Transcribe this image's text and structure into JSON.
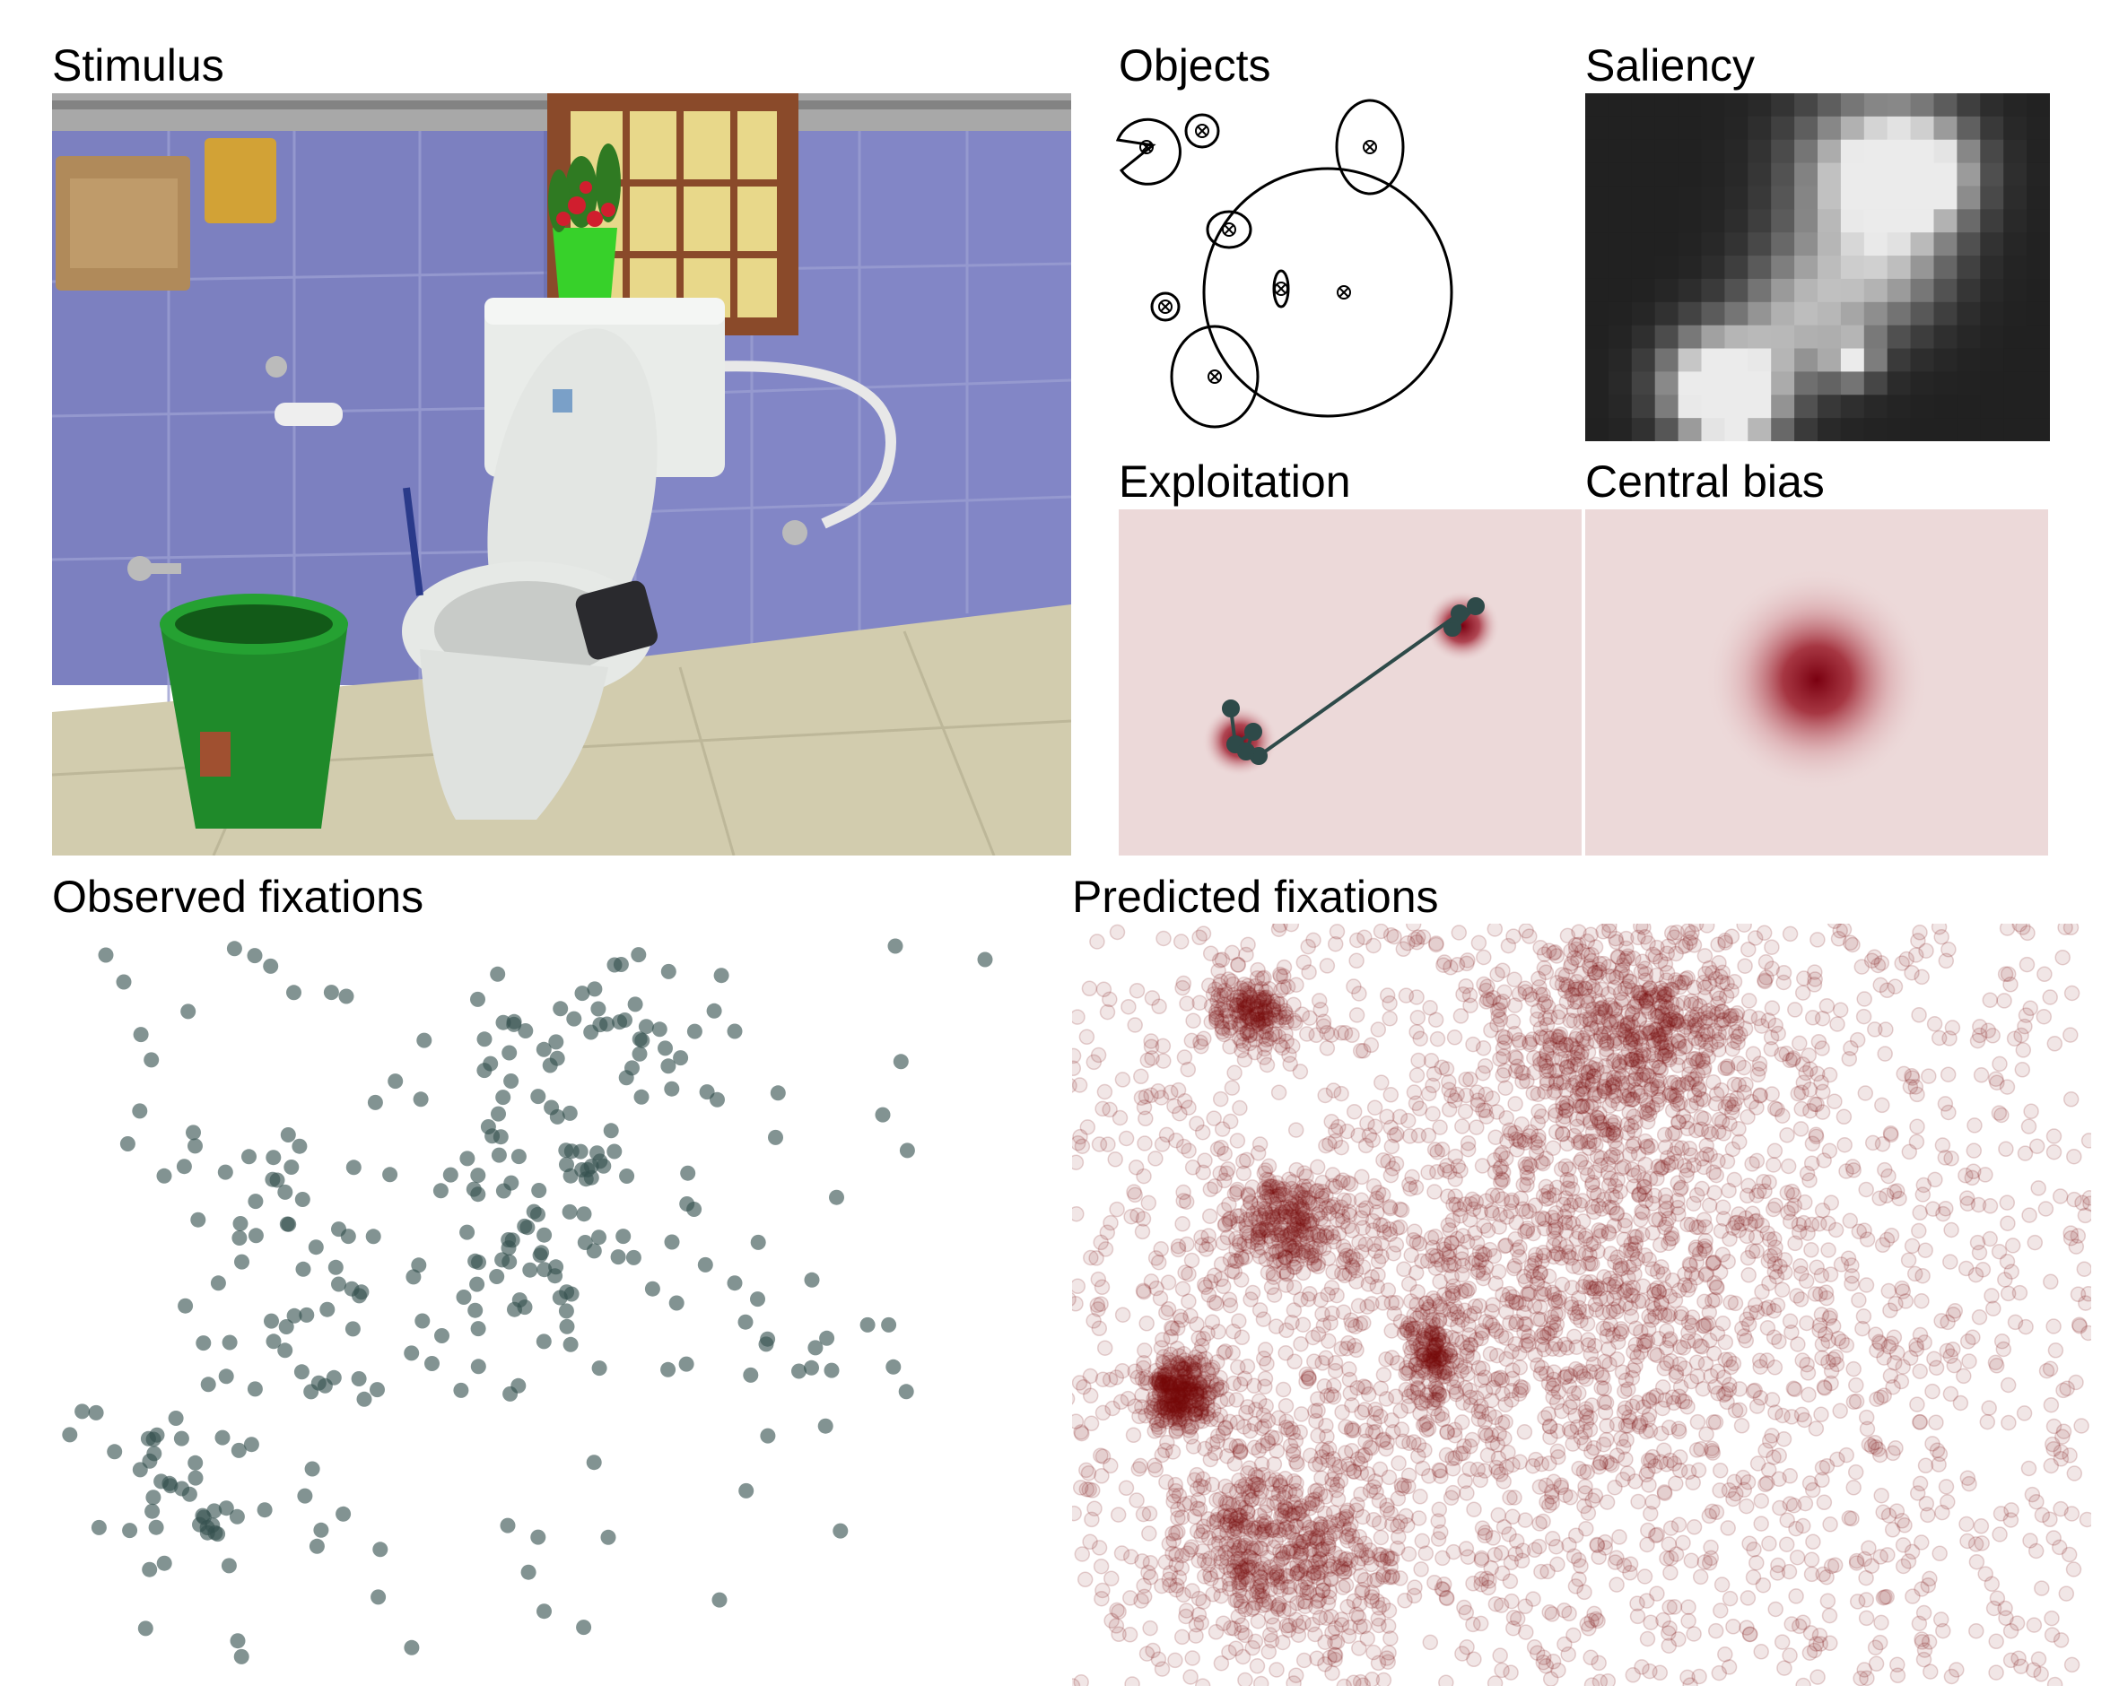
{
  "panels": {
    "stimulus": {
      "title": "Stimulus"
    },
    "objects": {
      "title": "Objects"
    },
    "saliency": {
      "title": "Saliency"
    },
    "exploitation": {
      "title": "Exploitation"
    },
    "central_bias": {
      "title": "Central bias"
    },
    "observed": {
      "title": "Observed fixations"
    },
    "predicted": {
      "title": "Predicted fixations"
    }
  },
  "colors": {
    "fixation": "#35504f",
    "predicted": "#7a0a0a",
    "heat_bg": "#ecd9d9",
    "wall": "#7f83c3",
    "floor": "#d6d0b3",
    "bucket": "#1f8a2a"
  },
  "icons": {
    "object_center_marker": "circle-x-marker"
  }
}
